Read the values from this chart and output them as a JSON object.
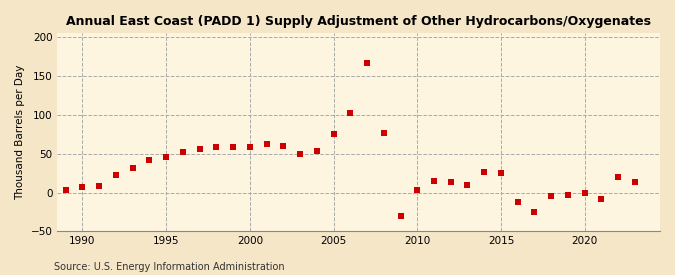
{
  "title": "Annual East Coast (PADD 1) Supply Adjustment of Other Hydrocarbons/Oxygenates",
  "ylabel": "Thousand Barrels per Day",
  "source": "Source: U.S. Energy Information Administration",
  "background_color": "#f5e6c8",
  "plot_background_color": "#fdf5e0",
  "marker_color": "#cc0000",
  "marker_size": 16,
  "xlim": [
    1988.5,
    2024.5
  ],
  "ylim": [
    -50,
    205
  ],
  "yticks": [
    -50,
    0,
    50,
    100,
    150,
    200
  ],
  "xticks": [
    1990,
    1995,
    2000,
    2005,
    2010,
    2015,
    2020
  ],
  "years": [
    1989,
    1990,
    1991,
    1992,
    1993,
    1994,
    1995,
    1996,
    1997,
    1998,
    1999,
    2000,
    2001,
    2002,
    2003,
    2004,
    2005,
    2006,
    2007,
    2008,
    2009,
    2010,
    2011,
    2012,
    2013,
    2014,
    2015,
    2016,
    2017,
    2018,
    2019,
    2020,
    2021,
    2022,
    2023
  ],
  "values": [
    3,
    7,
    9,
    22,
    32,
    42,
    46,
    52,
    56,
    59,
    59,
    59,
    63,
    60,
    49,
    53,
    76,
    102,
    167,
    77,
    -30,
    3,
    15,
    13,
    10,
    27,
    25,
    -12,
    -25,
    -5,
    -3,
    -1,
    -8,
    20,
    13
  ]
}
